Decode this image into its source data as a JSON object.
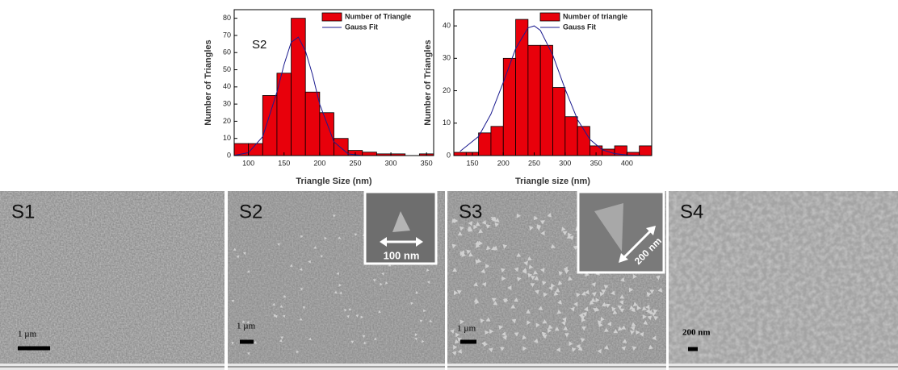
{
  "chart_data": [
    {
      "type": "histogram",
      "annotation": "S2",
      "x_label": "Triangle Size (nm)",
      "y_label": "Number of Triangles",
      "bins": [
        80,
        100,
        120,
        140,
        160,
        180,
        200,
        220,
        240,
        260,
        280,
        300,
        320,
        340,
        360
      ],
      "series": [
        {
          "name": "Number of Triangle",
          "color": "#e8000b",
          "values": [
            7,
            7,
            35,
            48,
            80,
            37,
            25,
            10,
            3,
            2,
            1,
            1,
            0,
            1
          ]
        },
        {
          "name": "Gauss Fit",
          "type": "line",
          "color": "#1b1b8f",
          "x": [
            80,
            100,
            120,
            140,
            150,
            160,
            170,
            180,
            190,
            200,
            220,
            240,
            260,
            300,
            360
          ],
          "values": [
            0.1,
            1.7,
            11,
            37,
            53,
            66,
            69,
            61,
            47,
            30,
            8,
            1,
            0,
            0,
            0
          ]
        }
      ],
      "xlim": [
        80,
        360
      ],
      "xticks": [
        100,
        150,
        200,
        250,
        300,
        350
      ],
      "ylim": [
        0,
        85
      ],
      "yticks": [
        0,
        10,
        20,
        30,
        40,
        50,
        60,
        70,
        80
      ],
      "legend": "top-right"
    },
    {
      "type": "histogram",
      "x_label": "Triangle size (nm)",
      "y_label": "Number of Triangles",
      "bins": [
        120,
        140,
        160,
        180,
        200,
        220,
        240,
        260,
        280,
        300,
        320,
        340,
        360,
        380,
        400,
        420,
        440
      ],
      "series": [
        {
          "name": "Number of triangle",
          "color": "#e8000b",
          "values": [
            1,
            1,
            7,
            9,
            30,
            42,
            34,
            34,
            21,
            12,
            9,
            3,
            2,
            3,
            1,
            3
          ]
        },
        {
          "name": "Gauss Fit",
          "type": "line",
          "color": "#1b1b8f",
          "x": [
            130,
            160,
            180,
            200,
            220,
            240,
            250,
            260,
            280,
            300,
            320,
            340,
            360,
            380,
            400,
            430
          ],
          "values": [
            1.3,
            5.9,
            12.8,
            22.6,
            33,
            39.4,
            40,
            38.6,
            31,
            20.5,
            11.1,
            5,
            1.8,
            0.6,
            0.2,
            0
          ]
        }
      ],
      "xlim": [
        120,
        440
      ],
      "xticks": [
        150,
        200,
        250,
        300,
        350,
        400
      ],
      "ylim": [
        0,
        45
      ],
      "yticks": [
        0,
        10,
        20,
        30,
        40
      ],
      "legend": "top-right"
    }
  ],
  "images": [
    {
      "label": "S1",
      "scale": "1 µm"
    },
    {
      "label": "S2",
      "scale": "1 µm",
      "inset": "100 nm"
    },
    {
      "label": "S3",
      "scale": "1 µm",
      "inset": "200 nm"
    },
    {
      "label": "S4",
      "scale": "200 nm"
    }
  ]
}
